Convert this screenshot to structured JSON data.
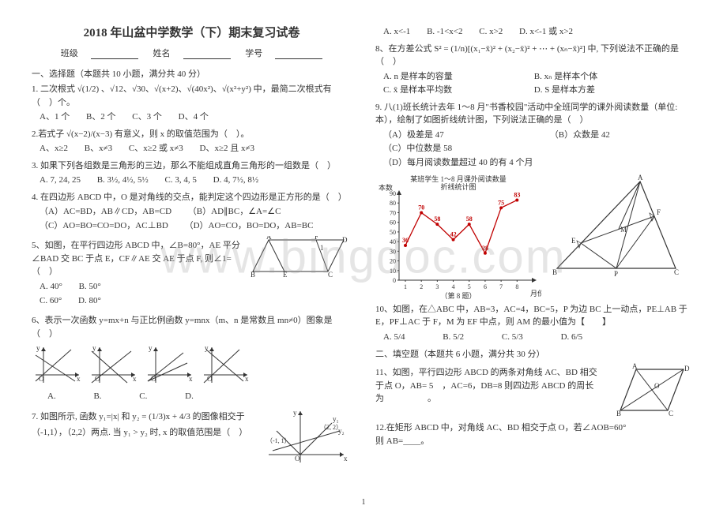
{
  "title": "2018 年山盆中学数学（下）期末复习试卷",
  "info": {
    "class_label": "班级",
    "name_label": "姓名",
    "id_label": "学号"
  },
  "section1": "一、选择题（本题共 10 小题，满分共 40 分）",
  "q1": {
    "stem": "1.  二次根式 √(1/2) 、√12、√30、√(x+2)、√(40x²)、√(x²+y²) 中，最简二次根式有（　）个。",
    "a": "A、1 个",
    "b": "B、2 个",
    "c": "C、3 个",
    "d": "D、4 个"
  },
  "q2": {
    "stem": "2.若式子 √(x−2)/(x−3) 有意义，则 x 的取值范围为（　）。",
    "a": "A、x≥2",
    "b": "B、x≠3",
    "c": "C、x≥2 或 x≠3",
    "d": "D、x≥2 且 x≠3"
  },
  "q3": {
    "stem": "3.  如果下列各组数是三角形的三边，那么不能组成直角三角形的一组数是（　）",
    "a": "A. 7, 24, 25",
    "b": "B. 3½, 4½, 5½",
    "c": "C. 3, 4, 5",
    "d": "D. 4, 7½, 8½"
  },
  "q4": {
    "stem": "4.  在四边形 ABCD 中，O 是对角线的交点，能判定这个四边形是正方形的是（　）",
    "a": "（A）AC=BD，AB∥CD，AB=CD",
    "b": "（B）AD∥BC，∠A=∠C",
    "c": "（C）AO=BO=CO=DO，AC⊥BD",
    "d": "（D）AO=CO，BO=DO，AB=BC"
  },
  "q5": {
    "stem": "5、如图，在平行四边形 ABCD 中，∠B=80°，AE 平分∠BAD 交 BC 于点 E，CF∥AE 交 AE 于点 F, 则∠1=（　）",
    "a": "A. 40°",
    "b": "B. 50°",
    "c": "C. 60°",
    "d": "D. 80°"
  },
  "q6": {
    "stem": "6、表示一次函数 y=mx+n 与正比例函数 y=mnx（m、n 是常数且 mn≠0）图象是（　）",
    "labels": {
      "a": "A.",
      "b": "B.",
      "c": "C.",
      "d": "D."
    }
  },
  "q7": {
    "stem_a": "7. 如图所示, 函数 y₁=|x| 和 y₂ = (1/3)x + 4/3 的图像相交于",
    "stem_b": "（-1,1），（2,2）两点. 当 y₁ > y₂ 时, x 的取值范围是（　）",
    "graph_labels": {
      "y1": "y₁",
      "y2": "y₂",
      "p1": "（-1, 1）",
      "p2": "（2, 2）"
    }
  },
  "q7opts": {
    "a": "A. x<-1",
    "b": "B. -1<x<2",
    "c": "C. x>2",
    "d": "D. x<-1 或 x>2"
  },
  "q8": {
    "stem": "8、在方差公式 S² = (1/n)[(x₁−x̄)² + (x₂−x̄)² + ⋯ + (xₙ−x̄)²] 中, 下列说法不正确的是（　）",
    "a": "A. n 是样本的容量",
    "b": "B. xₙ 是样本个体",
    "c": "C. x̄ 是样本平均数",
    "d": "D. S 是样本方差"
  },
  "q9": {
    "stem": "9.  八(1)班长统计去年 1～8 月\"书香校园\"活动中全班同学的课外阅读数量（单位: 本），绘制了如图折线统计图，下列说法正确的是（　）",
    "a": "（A）极差是 47",
    "b": "（B）众数是 42",
    "c": "（C）中位数是 58",
    "d": "（D）每月阅读数量超过 40 的有 4 个月"
  },
  "chart": {
    "title_a": "某班学生 1～8 月课外阅读数量",
    "title_b": "折线统计图",
    "xlabel": "月份",
    "ylabel": "本数",
    "x": [
      1,
      2,
      3,
      4,
      5,
      6,
      7,
      8
    ],
    "y": [
      36,
      70,
      58,
      42,
      58,
      28,
      75,
      83
    ],
    "yticks": [
      0,
      10,
      20,
      30,
      40,
      50,
      60,
      70,
      80,
      90
    ],
    "line_color": "#c00000",
    "marker_color": "#c00000",
    "grid_color": "#333",
    "bg": "#ffffff"
  },
  "tri": {
    "labels": {
      "A": "A",
      "B": "B",
      "C": "C",
      "E": "E",
      "F": "F",
      "M": "M",
      "P": "P"
    }
  },
  "q10": {
    "stem": "10、如图，在△ABC 中，AB=3，AC=4，BC=5，P 为边 BC 上一动点，PE⊥AB 于 E，PF⊥AC 于 F，M 为 EF 中点，则 AM 的最小值为【　　】",
    "a": "A. 5/4",
    "b": "B. 5/2",
    "c": "C. 5/3",
    "d": "D. 6/5"
  },
  "section2": "二、填空题（本题共 6 小题，满分共 30 分）",
  "q11": {
    "stem": "11、如图，平行四边形 ABCD 的两条对角线 AC、BD 相交于点 O，AB= 5　，AC=6，DB=8 则四边形 ABCD 的周长为　　　　　。"
  },
  "q12": {
    "stem": "12.在矩形 ABCD 中，对角线 AC、BD 相交于点 O，若∠AOB=60°　　　　　　　　则 AB=____。"
  },
  "rhombus": {
    "A": "A",
    "B": "B",
    "C": "C",
    "D": "D",
    "O": "O"
  },
  "parallelogram": {
    "A": "A",
    "B": "B",
    "C": "C",
    "D": "D",
    "E": "E",
    "F": "F",
    "ang": "1"
  },
  "pagenum": "1"
}
